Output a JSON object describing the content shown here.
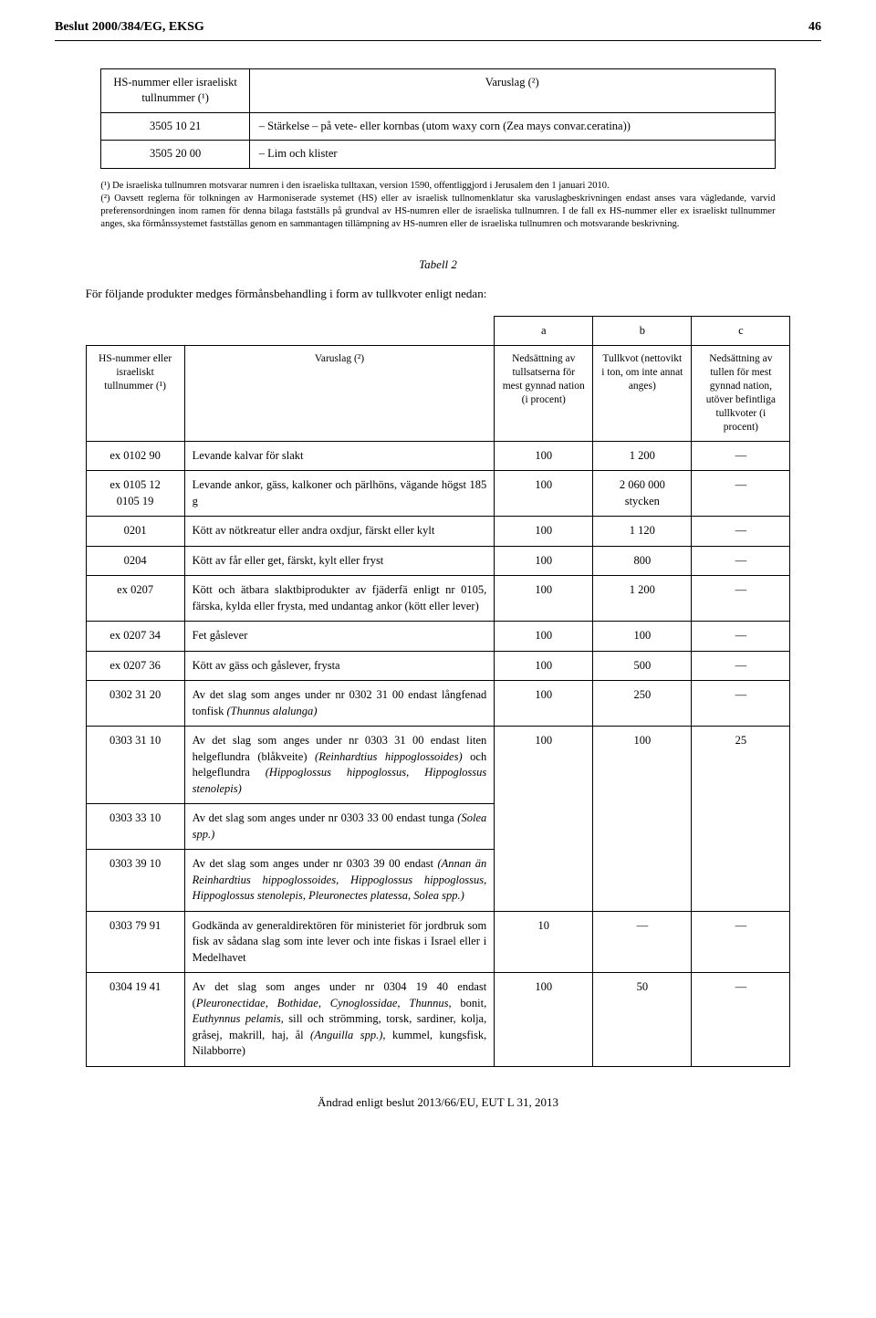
{
  "header": {
    "title": "Beslut 2000/384/EG, EKSG",
    "page": "46"
  },
  "table1": {
    "col1_header": "HS-nummer eller israeliskt tullnummer (¹)",
    "col2_header": "Varuslag (²)",
    "rows": [
      {
        "code": "3505 10 21",
        "desc": "– Stärkelse – på vete- eller kornbas (utom waxy corn (Zea mays convar.ceratina))"
      },
      {
        "code": "3505 20 00",
        "desc": "– Lim och klister"
      }
    ]
  },
  "footnotes": {
    "f1": "(¹) De israeliska tullnumren motsvarar numren i den israeliska tulltaxan, version 1590, offentliggjord i Jerusalem den 1 januari 2010.",
    "f2": "(²) Oavsett reglerna för tolkningen av Harmoniserade systemet (HS) eller av israelisk tullnomenklatur ska varuslagbeskrivningen endast anses vara vägledande, varvid preferensordningen inom ramen för denna bilaga fastställs på grundval av HS-numren eller de israeliska tullnumren. I de fall ex HS-nummer eller ex israeliskt tullnummer anges, ska förmånssystemet fastställas genom en sammantagen tillämpning av HS-numren eller de israeliska tullnumren och motsvarande beskrivning."
  },
  "tabell2_title": "Tabell 2",
  "intro": "För följande produkter medges förmånsbehandling i form av tullkvoter enligt nedan:",
  "table2": {
    "abc": {
      "a": "a",
      "b": "b",
      "c": "c"
    },
    "headers": {
      "hs": "HS-nummer eller israeliskt tullnummer (¹)",
      "desc": "Varuslag (²)",
      "a": "Nedsättning av tullsatserna för mest gynnad nation (i procent)",
      "b": "Tullkvot (nettovikt i ton, om inte annat anges)",
      "c": "Nedsättning av tullen för mest gynnad nation, utöver befintliga tullkvoter (i procent)"
    },
    "rows": [
      {
        "hs": "ex 0102 90",
        "desc": "Levande kalvar för slakt",
        "a": "100",
        "b": "1 200",
        "c": "—"
      },
      {
        "hs": "ex 0105 12\n0105 19",
        "desc": "Levande ankor, gäss, kalkoner och pärlhöns, vägande högst 185 g",
        "a": "100",
        "b": "2 060 000 stycken",
        "c": "—"
      },
      {
        "hs": "0201",
        "desc": "Kött av nötkreatur eller andra oxdjur, färskt eller kylt",
        "a": "100",
        "b": "1 120",
        "c": "—"
      },
      {
        "hs": "0204",
        "desc": "Kött av får eller get, färskt, kylt eller fryst",
        "a": "100",
        "b": "800",
        "c": "—"
      },
      {
        "hs": "ex 0207",
        "desc": "Kött och ätbara slaktbiprodukter av fjäderfä enligt nr 0105, färska, kylda eller frysta, med undantag ankor (kött eller lever)",
        "a": "100",
        "b": "1 200",
        "c": "—"
      },
      {
        "hs": "ex 0207 34",
        "desc": "Fet gåslever",
        "a": "100",
        "b": "100",
        "c": "—"
      },
      {
        "hs": "ex 0207 36",
        "desc": "Kött av gäss och gåslever, frysta",
        "a": "100",
        "b": "500",
        "c": "—"
      },
      {
        "hs": "0302 31 20",
        "desc": "Av det slag som anges under nr 0302 31 00 endast långfenad tonfisk (Thunnus alalunga)",
        "a": "100",
        "b": "250",
        "c": "—"
      },
      {
        "hs": "0303 31 10",
        "desc": "Av det slag som anges under nr 0303 31 00 endast liten helgeflundra (blåkveite) (Reinhardtius hippoglossoides) och helgeflundra (Hippoglossus hippoglossus, Hippoglossus stenolepis)",
        "a": "100",
        "b": "100",
        "c": "25"
      },
      {
        "hs": "0303 33 10",
        "desc": "Av det slag som anges under nr 0303 33 00 endast tunga (Solea spp.)",
        "a": "",
        "b": "",
        "c": ""
      },
      {
        "hs": "0303 39 10",
        "desc": "Av det slag som anges under nr 0303 39 00 endast (Annan än Reinhardtius hippoglossoides, Hippoglossus hippoglossus, Hippoglossus stenolepis, Pleuronectes platessa, Solea spp.)",
        "a": "",
        "b": "",
        "c": ""
      },
      {
        "hs": "0303 79 91",
        "desc": "Godkända av generaldirektören för ministeriet för jordbruk som fisk av sådana slag som inte lever och inte fiskas i Israel eller i Medelhavet",
        "a": "10",
        "b": "—",
        "c": "—"
      },
      {
        "hs": "0304 19 41",
        "desc": "Av det slag som anges under nr 0304 19 40 endast (Pleuronectidae, Bothidae, Cynoglossidae, Thunnus, bonit, Euthynnus pelamis, sill och strömming, torsk, sardiner, kolja, gråsej, makrill, haj, ål (Anguilla spp.), kummel, kungsfisk, Nilabborre)",
        "a": "100",
        "b": "50",
        "c": "—"
      }
    ]
  },
  "footer": "Ändrad enligt beslut 2013/66/EU, EUT L 31, 2013"
}
